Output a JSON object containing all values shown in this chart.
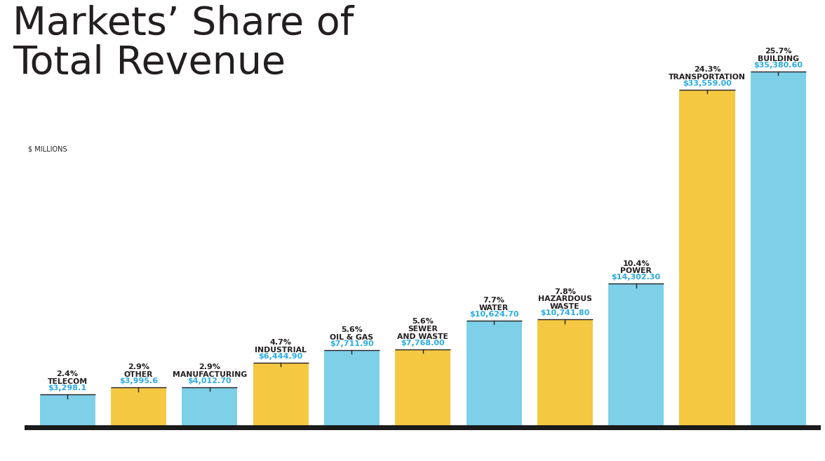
{
  "title_line1": "Markets’ Share of",
  "title_line2": "Total Revenue",
  "ylabel": "$ MILLIONS",
  "categories": [
    "TELECOM",
    "OTHER",
    "MANUFACTURING",
    "INDUSTRIAL",
    "OIL & GAS",
    "SEWER\nAND WASTE",
    "WATER",
    "HAZARDOUS\nWASTE",
    "POWER",
    "TRANSPORTATION",
    "BUILDING"
  ],
  "values": [
    3298.1,
    3995.6,
    4012.7,
    6444.9,
    7711.9,
    7768.0,
    10624.7,
    10741.8,
    14302.3,
    33559.0,
    35380.6
  ],
  "percentages": [
    "2.4%",
    "2.9%",
    "2.9%",
    "4.7%",
    "5.6%",
    "5.6%",
    "7.7%",
    "7.8%",
    "10.4%",
    "24.3%",
    "25.7%"
  ],
  "dollar_labels": [
    "$3,298.1",
    "$3,995.6",
    "$4,012.70",
    "$6,444.90",
    "$7,711.90",
    "$7,768.00",
    "$10,624.70",
    "$10,741.80",
    "$14,302.30",
    "$33,559.00",
    "$35,380.60"
  ],
  "bar_colors": [
    "#7ECFE8",
    "#F5C842",
    "#7ECFE8",
    "#F5C842",
    "#7ECFE8",
    "#F5C842",
    "#7ECFE8",
    "#F5C842",
    "#7ECFE8",
    "#F5C842",
    "#7ECFE8"
  ],
  "label_color_cyan": "#29ABE2",
  "label_color_dark": "#231F20",
  "background_color": "#FFFFFF",
  "title_color": "#231F20",
  "ylim_max": 42000,
  "ylim_min": -1500
}
